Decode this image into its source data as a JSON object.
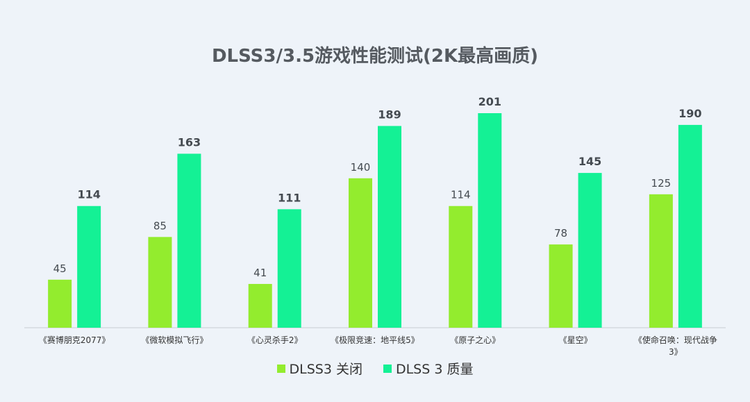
{
  "chart_data": {
    "type": "bar",
    "title": "DLSS3/3.5游戏性能测试(2K最高画质)",
    "categories": [
      "《赛博朋克2077》",
      "《微软模拟飞行》",
      "《心灵杀手2》",
      "《极限竞速：地平线5》",
      "《原子之心》",
      "《星空》",
      "《使命召唤：现代战争3》"
    ],
    "category_lines": [
      [
        "《赛博朋克2077》"
      ],
      [
        "《微软模拟飞行》"
      ],
      [
        "《心灵杀手2》"
      ],
      [
        "《极限竞速：地平线5》"
      ],
      [
        "《原子之心》"
      ],
      [
        "《星空》"
      ],
      [
        "《使命召唤：现代战争",
        "3》"
      ]
    ],
    "series": [
      {
        "name": "DLSS3 关闭",
        "values": [
          45,
          85,
          41,
          140,
          114,
          78,
          125
        ],
        "color": "#93ec2e"
      },
      {
        "name": "DLSS 3 质量",
        "values": [
          114,
          163,
          111,
          189,
          201,
          145,
          190
        ],
        "color": "#14f195"
      }
    ],
    "ylim": [
      0,
      201
    ],
    "grid": false,
    "legend_position": "bottom"
  }
}
